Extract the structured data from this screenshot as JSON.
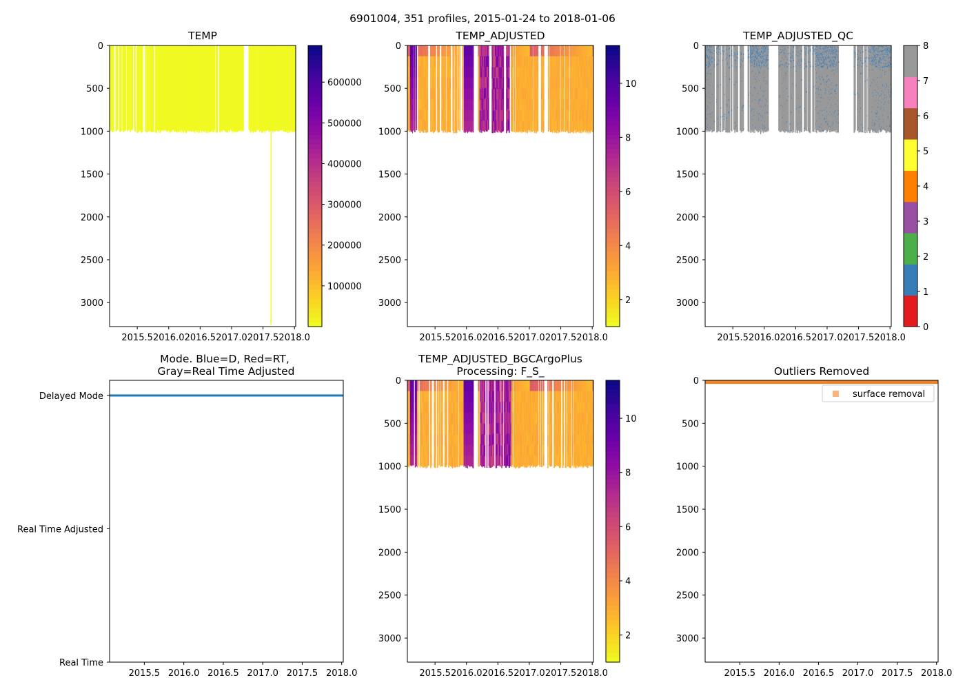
{
  "figure_title": "6901004, 351 profiles, 2015-01-24 to 2018-01-06",
  "colors": {
    "plasma_r": [
      "#f0f921",
      "#fcce25",
      "#fca636",
      "#f2844b",
      "#e16462",
      "#cc4778",
      "#b12a90",
      "#8f0da4",
      "#6a00a8",
      "#41049d",
      "#0d0887"
    ],
    "qc": [
      "#e41a1c",
      "#377eb8",
      "#4daf4a",
      "#984ea3",
      "#ff7f00",
      "#ffff33",
      "#a65628",
      "#f781bf",
      "#999999"
    ],
    "qc_good": "#3a7fc0",
    "qc_gray": "#999999",
    "mode_line": "#1f77b4",
    "outlier": "#f57f20",
    "outlier_legend": "#f9b37e"
  },
  "chart_data": [
    {
      "id": "temp",
      "type": "heatmap",
      "title": "TEMP",
      "xlim": [
        2015.06,
        2018.02
      ],
      "ylim": [
        3280,
        0
      ],
      "x_ticks": [
        2015.5,
        2016.0,
        2016.5,
        2017.0,
        2017.5,
        2018.0
      ],
      "x_tick_labels": [
        "2015.5",
        "2016.0",
        "2016.5",
        "2017.0",
        "2017.5",
        "2018.0"
      ],
      "y_ticks": [
        0,
        500,
        1000,
        1500,
        2000,
        2500,
        3000
      ],
      "y_tick_labels": [
        "0",
        "500",
        "1000",
        "1500",
        "2000",
        "2500",
        "3000"
      ],
      "profile_bottom_depth": 1000,
      "dense_periods": [
        [
          2015.06,
          2015.12
        ],
        [
          2015.86,
          2016.7
        ],
        [
          2016.82,
          2017.16
        ],
        [
          2017.46,
          2018.02
        ]
      ],
      "gaps": [
        [
          2017.18,
          2017.26
        ]
      ],
      "deep_profile": {
        "date": 2017.62,
        "max_depth": 3260
      },
      "colorbar": {
        "min": 0,
        "max": 690000,
        "ticks": [
          100000,
          200000,
          300000,
          400000,
          500000,
          600000
        ],
        "tick_labels": [
          "100000",
          "200000",
          "300000",
          "400000",
          "500000",
          "600000"
        ]
      }
    },
    {
      "id": "temp_adjusted",
      "type": "heatmap",
      "title": "TEMP_ADJUSTED",
      "xlim": [
        2015.06,
        2018.02
      ],
      "ylim": [
        3280,
        0
      ],
      "x_ticks": [
        2015.5,
        2016.0,
        2016.5,
        2017.0,
        2017.5,
        2018.0
      ],
      "x_tick_labels": [
        "2015.5",
        "2016.0",
        "2016.5",
        "2017.0",
        "2017.5",
        "2018.0"
      ],
      "y_ticks": [
        0,
        500,
        1000,
        1500,
        2000,
        2500,
        3000
      ],
      "y_tick_labels": [
        "0",
        "500",
        "1000",
        "1500",
        "2000",
        "2500",
        "3000"
      ],
      "profile_bottom_depth": 1000,
      "dense_periods": [
        [
          2015.06,
          2015.16
        ],
        [
          2015.95,
          2016.08
        ],
        [
          2016.78,
          2017.05
        ],
        [
          2017.7,
          2018.02
        ]
      ],
      "gaps": [
        [
          2016.1,
          2016.18
        ],
        [
          2017.22,
          2017.28
        ]
      ],
      "colorbar": {
        "min": 1,
        "max": 11.4,
        "ticks": [
          2,
          4,
          6,
          8,
          10
        ],
        "tick_labels": [
          "2",
          "4",
          "6",
          "8",
          "10"
        ]
      }
    },
    {
      "id": "temp_adjusted_qc",
      "type": "heatmap",
      "title": "TEMP_ADJUSTED_QC",
      "xlim": [
        2015.06,
        2018.02
      ],
      "ylim": [
        3280,
        0
      ],
      "x_ticks": [
        2015.5,
        2016.0,
        2016.5,
        2017.0,
        2017.5,
        2018.0
      ],
      "x_tick_labels": [
        "2015.5",
        "2016.0",
        "2016.5",
        "2017.0",
        "2017.5",
        "2018.0"
      ],
      "y_ticks": [
        0,
        500,
        1000,
        1500,
        2000,
        2500,
        3000
      ],
      "y_tick_labels": [
        "0",
        "500",
        "1000",
        "1500",
        "2000",
        "2500",
        "3000"
      ],
      "profile_bottom_depth": 1000,
      "dense_periods": [
        [
          2015.06,
          2015.16
        ],
        [
          2015.76,
          2016.05
        ],
        [
          2016.8,
          2017.16
        ],
        [
          2017.7,
          2018.02
        ]
      ],
      "gaps": [
        [
          2016.07,
          2016.22
        ],
        [
          2017.18,
          2017.4
        ]
      ],
      "colorbar": {
        "min": 0,
        "max": 8,
        "ticks": [
          0,
          1,
          2,
          3,
          4,
          5,
          6,
          7,
          8
        ],
        "tick_labels": [
          "0",
          "1",
          "2",
          "3",
          "4",
          "5",
          "6",
          "7",
          "8"
        ]
      }
    },
    {
      "id": "mode",
      "type": "line",
      "title_line1": "Mode. Blue=D, Red=RT,",
      "title_line2": "Gray=Real Time Adjusted",
      "xlim": [
        2015.06,
        2018.02
      ],
      "x_ticks": [
        2015.5,
        2016.0,
        2016.5,
        2017.0,
        2017.5,
        2018.0
      ],
      "x_tick_labels": [
        "2015.5",
        "2016.0",
        "2016.5",
        "2017.0",
        "2017.5",
        "2018.0"
      ],
      "y_categories": [
        "Real Time",
        "Real Time Adjusted",
        "Delayed Mode"
      ],
      "series": [
        {
          "name": "mode",
          "x": [
            2015.06,
            2018.02
          ],
          "y": [
            "Delayed Mode",
            "Delayed Mode"
          ]
        }
      ]
    },
    {
      "id": "temp_adjusted_bgc",
      "type": "heatmap",
      "title_line1": "TEMP_ADJUSTED_BGCArgoPlus",
      "title_line2": "Processing: F_S_",
      "xlim": [
        2015.06,
        2018.02
      ],
      "ylim": [
        3280,
        0
      ],
      "x_ticks": [
        2015.5,
        2016.0,
        2016.5,
        2017.0,
        2017.5,
        2018.0
      ],
      "x_tick_labels": [
        "2015.5",
        "2016.0",
        "2016.5",
        "2017.0",
        "2017.5",
        "2018.0"
      ],
      "y_ticks": [
        0,
        500,
        1000,
        1500,
        2000,
        2500,
        3000
      ],
      "y_tick_labels": [
        "0",
        "500",
        "1000",
        "1500",
        "2000",
        "2500",
        "3000"
      ],
      "profile_bottom_depth": 1000,
      "dense_periods": [
        [
          2015.06,
          2015.16
        ],
        [
          2015.95,
          2016.08
        ],
        [
          2016.78,
          2017.05
        ],
        [
          2017.7,
          2018.02
        ]
      ],
      "gaps": [
        [
          2016.1,
          2016.18
        ],
        [
          2017.22,
          2017.28
        ]
      ],
      "colorbar": {
        "min": 1,
        "max": 11.4,
        "ticks": [
          2,
          4,
          6,
          8,
          10
        ],
        "tick_labels": [
          "2",
          "4",
          "6",
          "8",
          "10"
        ]
      }
    },
    {
      "id": "outliers",
      "type": "scatter",
      "title": "Outliers Removed",
      "xlim": [
        2015.06,
        2018.02
      ],
      "ylim": [
        3280,
        0
      ],
      "x_ticks": [
        2015.5,
        2016.0,
        2016.5,
        2017.0,
        2017.5,
        2018.0
      ],
      "x_tick_labels": [
        "2015.5",
        "2016.0",
        "2016.5",
        "2017.0",
        "2017.5",
        "2018.0"
      ],
      "y_ticks": [
        0,
        500,
        1000,
        1500,
        2000,
        2500,
        3000
      ],
      "y_tick_labels": [
        "0",
        "500",
        "1000",
        "1500",
        "2000",
        "2500",
        "3000"
      ],
      "series": [
        {
          "name": "surface removal",
          "x_range": [
            2015.06,
            2018.02
          ],
          "depth_range": [
            0,
            25
          ]
        }
      ],
      "legend": {
        "label": "surface removal",
        "placement": "top-right"
      }
    }
  ]
}
